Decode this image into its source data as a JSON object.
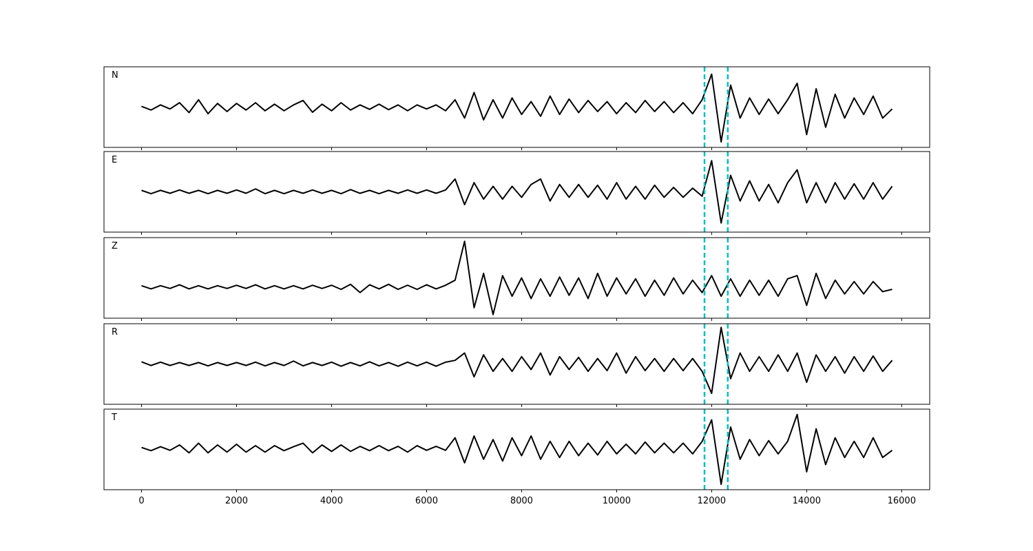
{
  "chart_data": [
    {
      "type": "line",
      "label": "N",
      "color": "#000000",
      "xlim": [
        -790,
        16590
      ],
      "ylim": [
        -1.1,
        1.1
      ],
      "xticks": [
        0,
        2000,
        4000,
        6000,
        8000,
        10000,
        12000,
        14000,
        16000
      ],
      "vlines": [
        11850,
        12340
      ],
      "vline_color": "#00bfbf",
      "x": [
        0,
        200,
        400,
        600,
        800,
        1000,
        1200,
        1400,
        1600,
        1800,
        2000,
        2200,
        2400,
        2600,
        2800,
        3000,
        3200,
        3400,
        3600,
        3800,
        4000,
        4200,
        4400,
        4600,
        4800,
        5000,
        5200,
        5400,
        5600,
        5800,
        6000,
        6200,
        6400,
        6600,
        6800,
        7000,
        7200,
        7400,
        7600,
        7800,
        8000,
        8200,
        8400,
        8600,
        8800,
        9000,
        9200,
        9400,
        9600,
        9800,
        10000,
        10200,
        10400,
        10600,
        10800,
        11000,
        11200,
        11400,
        11600,
        11800,
        12000,
        12200,
        12400,
        12600,
        12800,
        13000,
        13200,
        13400,
        13600,
        13800,
        14000,
        14200,
        14400,
        14600,
        14800,
        15000,
        15200,
        15400,
        15600,
        15800
      ],
      "values": [
        0.02,
        -0.08,
        0.06,
        -0.05,
        0.12,
        -0.15,
        0.2,
        -0.18,
        0.1,
        -0.12,
        0.1,
        -0.08,
        0.12,
        -0.1,
        0.08,
        -0.1,
        0.06,
        0.18,
        -0.14,
        0.08,
        -0.1,
        0.12,
        -0.08,
        0.06,
        -0.06,
        0.08,
        -0.07,
        0.06,
        -0.1,
        0.06,
        -0.05,
        0.06,
        -0.1,
        0.2,
        -0.3,
        0.4,
        -0.35,
        0.2,
        -0.3,
        0.25,
        -0.2,
        0.15,
        -0.25,
        0.3,
        -0.2,
        0.22,
        -0.15,
        0.18,
        -0.12,
        0.15,
        -0.18,
        0.12,
        -0.15,
        0.18,
        -0.12,
        0.15,
        -0.15,
        0.12,
        -0.18,
        0.2,
        0.9,
        -0.95,
        0.6,
        -0.3,
        0.25,
        -0.2,
        0.22,
        -0.18,
        0.2,
        0.65,
        -0.75,
        0.5,
        -0.55,
        0.35,
        -0.3,
        0.25,
        -0.2,
        0.3,
        -0.3,
        -0.05
      ]
    },
    {
      "type": "line",
      "label": "E",
      "color": "#000000",
      "xlim": [
        -790,
        16590
      ],
      "ylim": [
        -1.1,
        1.1
      ],
      "xticks": [
        0,
        2000,
        4000,
        6000,
        8000,
        10000,
        12000,
        14000,
        16000
      ],
      "vlines": [
        11850,
        12340
      ],
      "vline_color": "#00bfbf",
      "x": [
        0,
        200,
        400,
        600,
        800,
        1000,
        1200,
        1400,
        1600,
        1800,
        2000,
        2200,
        2400,
        2600,
        2800,
        3000,
        3200,
        3400,
        3600,
        3800,
        4000,
        4200,
        4400,
        4600,
        4800,
        5000,
        5200,
        5400,
        5600,
        5800,
        6000,
        6200,
        6400,
        6600,
        6800,
        7000,
        7200,
        7400,
        7600,
        7800,
        8000,
        8200,
        8400,
        8600,
        8800,
        9000,
        9200,
        9400,
        9600,
        9800,
        10000,
        10200,
        10400,
        10600,
        10800,
        11000,
        11200,
        11400,
        11600,
        11800,
        12000,
        12200,
        12400,
        12600,
        12800,
        13000,
        13200,
        13400,
        13600,
        13800,
        14000,
        14200,
        14400,
        14600,
        14800,
        15000,
        15200,
        15400,
        15600,
        15800
      ],
      "values": [
        0.04,
        -0.05,
        0.04,
        -0.04,
        0.05,
        -0.04,
        0.04,
        -0.05,
        0.04,
        -0.04,
        0.05,
        -0.04,
        0.08,
        -0.05,
        0.04,
        -0.05,
        0.04,
        -0.04,
        0.05,
        -0.04,
        0.04,
        -0.05,
        0.06,
        -0.04,
        0.04,
        -0.05,
        0.04,
        -0.04,
        0.05,
        -0.04,
        0.05,
        -0.04,
        0.05,
        0.35,
        -0.35,
        0.25,
        -0.2,
        0.15,
        -0.2,
        0.15,
        -0.15,
        0.2,
        0.35,
        -0.25,
        0.2,
        -0.15,
        0.2,
        -0.15,
        0.18,
        -0.2,
        0.25,
        -0.2,
        0.15,
        -0.2,
        0.18,
        -0.15,
        0.12,
        -0.15,
        0.1,
        -0.12,
        0.85,
        -0.85,
        0.45,
        -0.25,
        0.3,
        -0.25,
        0.2,
        -0.3,
        0.25,
        0.6,
        -0.3,
        0.25,
        -0.3,
        0.25,
        -0.2,
        0.22,
        -0.2,
        0.25,
        -0.2,
        0.15
      ]
    },
    {
      "type": "line",
      "label": "Z",
      "color": "#000000",
      "xlim": [
        -790,
        16590
      ],
      "ylim": [
        -0.68,
        1.08
      ],
      "xticks": [
        0,
        2000,
        4000,
        6000,
        8000,
        10000,
        12000,
        14000,
        16000
      ],
      "vlines": [
        11850,
        12340
      ],
      "vline_color": "#00bfbf",
      "x": [
        0,
        200,
        400,
        600,
        800,
        1000,
        1200,
        1400,
        1600,
        1800,
        2000,
        2200,
        2400,
        2600,
        2800,
        3000,
        3200,
        3400,
        3600,
        3800,
        4000,
        4200,
        4400,
        4600,
        4800,
        5000,
        5200,
        5400,
        5600,
        5800,
        6000,
        6200,
        6400,
        6600,
        6800,
        7000,
        7200,
        7400,
        7600,
        7800,
        8000,
        8200,
        8400,
        8600,
        8800,
        9000,
        9200,
        9400,
        9600,
        9800,
        10000,
        10200,
        10400,
        10600,
        10800,
        11000,
        11200,
        11400,
        11600,
        11800,
        12000,
        12200,
        12400,
        12600,
        12800,
        13000,
        13200,
        13400,
        13600,
        13800,
        14000,
        14200,
        14400,
        14600,
        14800,
        15000,
        15200,
        15400,
        15600,
        15800
      ],
      "values": [
        0.03,
        -0.04,
        0.03,
        -0.03,
        0.05,
        -0.04,
        0.03,
        -0.04,
        0.03,
        -0.03,
        0.04,
        -0.03,
        0.05,
        -0.04,
        0.03,
        -0.04,
        0.03,
        -0.04,
        0.04,
        -0.03,
        0.04,
        -0.05,
        0.06,
        -0.12,
        0.05,
        -0.04,
        0.06,
        -0.05,
        0.04,
        -0.05,
        0.05,
        -0.04,
        0.04,
        0.15,
        1.0,
        -0.45,
        0.3,
        -0.6,
        0.25,
        -0.2,
        0.2,
        -0.25,
        0.18,
        -0.2,
        0.22,
        -0.18,
        0.2,
        -0.25,
        0.3,
        -0.2,
        0.2,
        -0.15,
        0.18,
        -0.2,
        0.15,
        -0.18,
        0.2,
        -0.15,
        0.15,
        -0.12,
        0.25,
        -0.2,
        0.18,
        -0.2,
        0.15,
        -0.18,
        0.15,
        -0.2,
        0.18,
        0.25,
        -0.4,
        0.3,
        -0.25,
        0.15,
        -0.15,
        0.12,
        -0.15,
        0.12,
        -0.1,
        -0.05
      ]
    },
    {
      "type": "line",
      "label": "R",
      "color": "#000000",
      "xlim": [
        -790,
        16590
      ],
      "ylim": [
        -1.1,
        1.1
      ],
      "xticks": [
        0,
        2000,
        4000,
        6000,
        8000,
        10000,
        12000,
        14000,
        16000
      ],
      "vlines": [
        11850,
        12340
      ],
      "vline_color": "#00bfbf",
      "x": [
        0,
        200,
        400,
        600,
        800,
        1000,
        1200,
        1400,
        1600,
        1800,
        2000,
        2200,
        2400,
        2600,
        2800,
        3000,
        3200,
        3400,
        3600,
        3800,
        4000,
        4200,
        4400,
        4600,
        4800,
        5000,
        5200,
        5400,
        5600,
        5800,
        6000,
        6200,
        6400,
        6600,
        6800,
        7000,
        7200,
        7400,
        7600,
        7800,
        8000,
        8200,
        8400,
        8600,
        8800,
        9000,
        9200,
        9400,
        9600,
        9800,
        10000,
        10200,
        10400,
        10600,
        10800,
        11000,
        11200,
        11400,
        11600,
        11800,
        12000,
        12200,
        12400,
        12600,
        12800,
        13000,
        13200,
        13400,
        13600,
        13800,
        14000,
        14200,
        14400,
        14600,
        14800,
        15000,
        15200,
        15400,
        15600,
        15800
      ],
      "values": [
        0.06,
        -0.04,
        0.05,
        -0.04,
        0.04,
        -0.04,
        0.04,
        -0.05,
        0.04,
        -0.04,
        0.04,
        -0.04,
        0.05,
        -0.05,
        0.04,
        -0.04,
        0.08,
        -0.05,
        0.04,
        -0.04,
        0.05,
        -0.06,
        0.04,
        -0.05,
        0.06,
        -0.05,
        0.04,
        -0.06,
        0.05,
        -0.05,
        0.05,
        -0.06,
        0.05,
        0.1,
        0.3,
        -0.35,
        0.25,
        -0.2,
        0.15,
        -0.2,
        0.2,
        -0.15,
        0.3,
        -0.3,
        0.2,
        -0.15,
        0.18,
        -0.2,
        0.15,
        -0.18,
        0.3,
        -0.25,
        0.2,
        -0.18,
        0.15,
        -0.2,
        0.15,
        -0.18,
        0.15,
        -0.2,
        -0.8,
        1.0,
        -0.4,
        0.3,
        -0.2,
        0.2,
        -0.2,
        0.25,
        -0.2,
        0.3,
        -0.5,
        0.25,
        -0.2,
        0.2,
        -0.25,
        0.2,
        -0.2,
        0.22,
        -0.2,
        0.1
      ]
    },
    {
      "type": "line",
      "label": "T",
      "color": "#000000",
      "xlim": [
        -790,
        16590
      ],
      "ylim": [
        -1.15,
        1.1
      ],
      "xticks": [
        0,
        2000,
        4000,
        6000,
        8000,
        10000,
        12000,
        14000,
        16000
      ],
      "vlines": [
        11850,
        12340
      ],
      "vline_color": "#00bfbf",
      "x": [
        0,
        200,
        400,
        600,
        800,
        1000,
        1200,
        1400,
        1600,
        1800,
        2000,
        2200,
        2400,
        2600,
        2800,
        3000,
        3200,
        3400,
        3600,
        3800,
        4000,
        4200,
        4400,
        4600,
        4800,
        5000,
        5200,
        5400,
        5600,
        5800,
        6000,
        6200,
        6400,
        6600,
        6800,
        7000,
        7200,
        7400,
        7600,
        7800,
        8000,
        8200,
        8400,
        8600,
        8800,
        9000,
        9200,
        9400,
        9600,
        9800,
        10000,
        10200,
        10400,
        10600,
        10800,
        11000,
        11200,
        11400,
        11600,
        11800,
        12000,
        12200,
        12400,
        12600,
        12800,
        13000,
        13200,
        13400,
        13600,
        13800,
        14000,
        14200,
        14400,
        14600,
        14800,
        15000,
        15200,
        15400,
        15600,
        15800
      ],
      "values": [
        0.03,
        -0.06,
        0.05,
        -0.05,
        0.1,
        -0.12,
        0.15,
        -0.12,
        0.1,
        -0.1,
        0.12,
        -0.1,
        0.08,
        -0.1,
        0.08,
        -0.06,
        0.05,
        0.15,
        -0.12,
        0.1,
        -0.08,
        0.1,
        -0.08,
        0.06,
        -0.06,
        0.08,
        -0.06,
        0.06,
        -0.1,
        0.08,
        -0.05,
        0.06,
        -0.05,
        0.3,
        -0.4,
        0.35,
        -0.3,
        0.25,
        -0.35,
        0.3,
        -0.2,
        0.35,
        -0.3,
        0.2,
        -0.25,
        0.2,
        -0.2,
        0.15,
        -0.18,
        0.2,
        -0.15,
        0.12,
        -0.15,
        0.18,
        -0.12,
        0.15,
        -0.12,
        0.15,
        -0.15,
        0.2,
        0.8,
        -1.0,
        0.6,
        -0.3,
        0.25,
        -0.2,
        0.22,
        -0.15,
        0.2,
        0.95,
        -0.65,
        0.55,
        -0.45,
        0.3,
        -0.25,
        0.2,
        -0.25,
        0.3,
        -0.25,
        -0.05
      ]
    }
  ]
}
